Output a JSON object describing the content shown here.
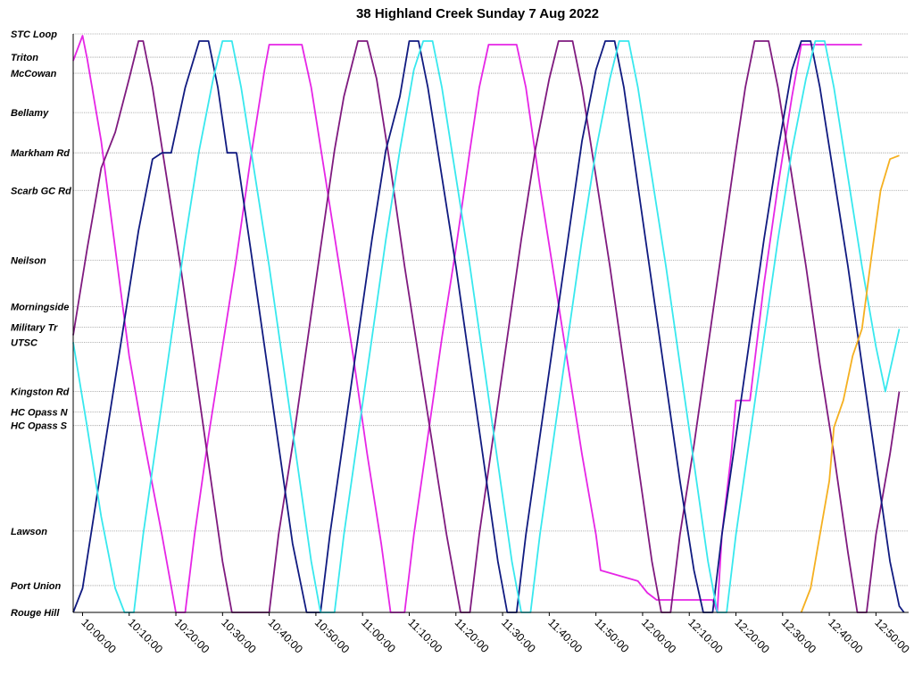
{
  "chart_data": {
    "type": "line",
    "title": "38 Highland Creek Sunday 7 Aug 2022",
    "xlabel": "",
    "ylabel": "",
    "x_range": [
      "09:58:00",
      "12:57:00"
    ],
    "grid": "horizontal-dotted",
    "legend": "none",
    "stops": [
      {
        "name": "STC Loop",
        "pos": 0
      },
      {
        "name": "Triton",
        "pos": 26
      },
      {
        "name": "McCowan",
        "pos": 44
      },
      {
        "name": "Bellamy",
        "pos": 88
      },
      {
        "name": "Markham Rd",
        "pos": 133
      },
      {
        "name": "Scarb GC Rd",
        "pos": 175
      },
      {
        "name": "Neilson",
        "pos": 253
      },
      {
        "name": "Morningside",
        "pos": 305
      },
      {
        "name": "Military Tr",
        "pos": 328
      },
      {
        "name": "UTSC",
        "pos": 345
      },
      {
        "name": "Kingston Rd",
        "pos": 400
      },
      {
        "name": "HC Opass N",
        "pos": 423
      },
      {
        "name": "HC Opass S",
        "pos": 438
      },
      {
        "name": "Lawson",
        "pos": 556
      },
      {
        "name": "Port Union",
        "pos": 617
      },
      {
        "name": "Rouge Hill",
        "pos": 647
      }
    ],
    "x_ticks": [
      "10:00:00",
      "10:10:00",
      "10:20:00",
      "10:30:00",
      "10:40:00",
      "10:50:00",
      "11:00:00",
      "11:10:00",
      "11:20:00",
      "11:30:00",
      "11:40:00",
      "11:50:00",
      "12:00:00",
      "12:10:00",
      "12:20:00",
      "12:30:00",
      "12:40:00",
      "12:50:00"
    ],
    "series": [
      {
        "color": "#e626e6",
        "points": [
          [
            "09:58:00",
            30
          ],
          [
            "10:00:00",
            2
          ],
          [
            "10:01:00",
            28
          ],
          [
            "10:04:00",
            120
          ],
          [
            "10:07:00",
            240
          ],
          [
            "10:10:00",
            360
          ],
          [
            "10:13:00",
            450
          ],
          [
            "10:17:00",
            560
          ],
          [
            "10:20:00",
            647
          ],
          [
            "10:22:00",
            647
          ],
          [
            "10:24:00",
            560
          ],
          [
            "10:27:00",
            450
          ],
          [
            "10:30:00",
            350
          ],
          [
            "10:33:00",
            250
          ],
          [
            "10:36:00",
            140
          ],
          [
            "10:39:00",
            40
          ],
          [
            "10:40:00",
            12
          ],
          [
            "10:47:00",
            12
          ],
          [
            "10:49:00",
            60
          ],
          [
            "10:52:00",
            160
          ],
          [
            "10:55:00",
            260
          ],
          [
            "10:58:00",
            360
          ],
          [
            "11:01:00",
            470
          ],
          [
            "11:04:00",
            570
          ],
          [
            "11:06:00",
            647
          ],
          [
            "11:09:00",
            647
          ],
          [
            "11:11:00",
            560
          ],
          [
            "11:14:00",
            450
          ],
          [
            "11:17:00",
            340
          ],
          [
            "11:20:00",
            240
          ],
          [
            "11:23:00",
            130
          ],
          [
            "11:25:00",
            60
          ],
          [
            "11:27:00",
            12
          ],
          [
            "11:33:00",
            12
          ],
          [
            "11:35:00",
            60
          ],
          [
            "11:38:00",
            170
          ],
          [
            "11:41:00",
            270
          ],
          [
            "11:44:00",
            370
          ],
          [
            "11:47:00",
            470
          ],
          [
            "11:50:00",
            560
          ],
          [
            "11:51:00",
            600
          ],
          [
            "11:59:00",
            612
          ],
          [
            "12:01:00",
            625
          ],
          [
            "12:03:00",
            633
          ],
          [
            "12:15:00",
            633
          ],
          [
            "12:16:00",
            647
          ],
          [
            "12:17:00",
            560
          ],
          [
            "12:19:00",
            470
          ],
          [
            "12:20:00",
            410
          ],
          [
            "12:23:00",
            410
          ],
          [
            "12:26:00",
            280
          ],
          [
            "12:29:00",
            170
          ],
          [
            "12:32:00",
            70
          ],
          [
            "12:34:00",
            12
          ],
          [
            "12:47:00",
            12
          ]
        ]
      },
      {
        "color": "#7f1a7f",
        "points": [
          [
            "09:58:00",
            337
          ],
          [
            "10:01:00",
            240
          ],
          [
            "10:04:00",
            150
          ],
          [
            "10:07:00",
            110
          ],
          [
            "10:10:00",
            50
          ],
          [
            "10:12:00",
            8
          ],
          [
            "10:13:00",
            8
          ],
          [
            "10:15:00",
            60
          ],
          [
            "10:18:00",
            160
          ],
          [
            "10:21:00",
            260
          ],
          [
            "10:24:00",
            370
          ],
          [
            "10:27:00",
            480
          ],
          [
            "10:30:00",
            590
          ],
          [
            "10:32:00",
            647
          ],
          [
            "10:40:00",
            647
          ],
          [
            "10:42:00",
            560
          ],
          [
            "10:45:00",
            460
          ],
          [
            "10:48:00",
            350
          ],
          [
            "10:51:00",
            240
          ],
          [
            "10:54:00",
            130
          ],
          [
            "10:56:00",
            70
          ],
          [
            "10:59:00",
            8
          ],
          [
            "11:01:00",
            8
          ],
          [
            "11:03:00",
            50
          ],
          [
            "11:06:00",
            150
          ],
          [
            "11:09:00",
            260
          ],
          [
            "11:12:00",
            360
          ],
          [
            "11:15:00",
            460
          ],
          [
            "11:18:00",
            560
          ],
          [
            "11:21:00",
            647
          ],
          [
            "11:23:00",
            647
          ],
          [
            "11:25:00",
            560
          ],
          [
            "11:28:00",
            450
          ],
          [
            "11:31:00",
            340
          ],
          [
            "11:34:00",
            230
          ],
          [
            "11:37:00",
            130
          ],
          [
            "11:40:00",
            50
          ],
          [
            "11:42:00",
            8
          ],
          [
            "11:45:00",
            8
          ],
          [
            "11:47:00",
            60
          ],
          [
            "11:50:00",
            160
          ],
          [
            "11:53:00",
            260
          ],
          [
            "11:56:00",
            370
          ],
          [
            "11:59:00",
            480
          ],
          [
            "12:02:00",
            590
          ],
          [
            "12:04:00",
            647
          ],
          [
            "12:06:00",
            647
          ],
          [
            "12:08:00",
            560
          ],
          [
            "12:11:00",
            460
          ],
          [
            "12:14:00",
            350
          ],
          [
            "12:17:00",
            240
          ],
          [
            "12:20:00",
            130
          ],
          [
            "12:22:00",
            60
          ],
          [
            "12:24:00",
            8
          ],
          [
            "12:27:00",
            8
          ],
          [
            "12:29:00",
            60
          ],
          [
            "12:32:00",
            160
          ],
          [
            "12:35:00",
            260
          ],
          [
            "12:38:00",
            370
          ],
          [
            "12:41:00",
            470
          ],
          [
            "12:44:00",
            580
          ],
          [
            "12:46:00",
            647
          ],
          [
            "12:48:00",
            647
          ],
          [
            "12:50:00",
            560
          ],
          [
            "12:53:00",
            470
          ],
          [
            "12:55:00",
            400
          ]
        ]
      },
      {
        "color": "#101a80",
        "points": [
          [
            "09:58:00",
            647
          ],
          [
            "10:00:00",
            620
          ],
          [
            "10:03:00",
            520
          ],
          [
            "10:06:00",
            420
          ],
          [
            "10:09:00",
            320
          ],
          [
            "10:12:00",
            220
          ],
          [
            "10:15:00",
            140
          ],
          [
            "10:17:00",
            133
          ],
          [
            "10:19:00",
            133
          ],
          [
            "10:22:00",
            60
          ],
          [
            "10:25:00",
            8
          ],
          [
            "10:27:00",
            8
          ],
          [
            "10:29:00",
            60
          ],
          [
            "10:31:00",
            133
          ],
          [
            "10:33:00",
            133
          ],
          [
            "10:36:00",
            240
          ],
          [
            "10:39:00",
            350
          ],
          [
            "10:42:00",
            460
          ],
          [
            "10:45:00",
            570
          ],
          [
            "10:48:00",
            647
          ],
          [
            "10:51:00",
            647
          ],
          [
            "10:53:00",
            560
          ],
          [
            "10:56:00",
            450
          ],
          [
            "10:59:00",
            340
          ],
          [
            "11:02:00",
            230
          ],
          [
            "11:05:00",
            130
          ],
          [
            "11:08:00",
            70
          ],
          [
            "11:10:00",
            8
          ],
          [
            "11:12:00",
            8
          ],
          [
            "11:14:00",
            60
          ],
          [
            "11:17:00",
            160
          ],
          [
            "11:20:00",
            260
          ],
          [
            "11:23:00",
            370
          ],
          [
            "11:26:00",
            480
          ],
          [
            "11:29:00",
            590
          ],
          [
            "11:31:00",
            647
          ],
          [
            "11:33:00",
            647
          ],
          [
            "11:35:00",
            560
          ],
          [
            "11:38:00",
            450
          ],
          [
            "11:41:00",
            340
          ],
          [
            "11:44:00",
            230
          ],
          [
            "11:47:00",
            120
          ],
          [
            "11:50:00",
            40
          ],
          [
            "11:52:00",
            8
          ],
          [
            "11:54:00",
            8
          ],
          [
            "11:56:00",
            60
          ],
          [
            "11:59:00",
            170
          ],
          [
            "12:02:00",
            280
          ],
          [
            "12:05:00",
            390
          ],
          [
            "12:08:00",
            500
          ],
          [
            "12:11:00",
            600
          ],
          [
            "12:13:00",
            647
          ],
          [
            "12:15:00",
            647
          ],
          [
            "12:17:00",
            560
          ],
          [
            "12:20:00",
            450
          ],
          [
            "12:23:00",
            340
          ],
          [
            "12:26:00",
            230
          ],
          [
            "12:29:00",
            130
          ],
          [
            "12:32:00",
            40
          ],
          [
            "12:34:00",
            8
          ],
          [
            "12:36:00",
            8
          ],
          [
            "12:38:00",
            60
          ],
          [
            "12:41:00",
            160
          ],
          [
            "12:44:00",
            260
          ],
          [
            "12:47:00",
            370
          ],
          [
            "12:50:00",
            480
          ],
          [
            "12:53:00",
            590
          ],
          [
            "12:55:00",
            640
          ],
          [
            "12:56:00",
            647
          ]
        ]
      },
      {
        "color": "#38e8ee",
        "points": [
          [
            "09:58:00",
            345
          ],
          [
            "10:01:00",
            440
          ],
          [
            "10:04:00",
            540
          ],
          [
            "10:07:00",
            620
          ],
          [
            "10:09:00",
            647
          ],
          [
            "10:11:00",
            647
          ],
          [
            "10:13:00",
            560
          ],
          [
            "10:16:00",
            450
          ],
          [
            "10:19:00",
            340
          ],
          [
            "10:22:00",
            230
          ],
          [
            "10:25:00",
            130
          ],
          [
            "10:28:00",
            50
          ],
          [
            "10:30:00",
            8
          ],
          [
            "10:32:00",
            8
          ],
          [
            "10:34:00",
            60
          ],
          [
            "10:37:00",
            160
          ],
          [
            "10:40:00",
            260
          ],
          [
            "10:43:00",
            370
          ],
          [
            "10:46:00",
            480
          ],
          [
            "10:49:00",
            590
          ],
          [
            "10:51:00",
            647
          ],
          [
            "10:54:00",
            647
          ],
          [
            "10:56:00",
            560
          ],
          [
            "10:59:00",
            450
          ],
          [
            "11:02:00",
            340
          ],
          [
            "11:05:00",
            230
          ],
          [
            "11:08:00",
            130
          ],
          [
            "11:11:00",
            40
          ],
          [
            "11:13:00",
            8
          ],
          [
            "11:15:00",
            8
          ],
          [
            "11:17:00",
            60
          ],
          [
            "11:20:00",
            160
          ],
          [
            "11:23:00",
            260
          ],
          [
            "11:26:00",
            370
          ],
          [
            "11:29:00",
            480
          ],
          [
            "11:32:00",
            590
          ],
          [
            "11:34:00",
            647
          ],
          [
            "11:36:00",
            647
          ],
          [
            "11:38:00",
            560
          ],
          [
            "11:41:00",
            450
          ],
          [
            "11:44:00",
            340
          ],
          [
            "11:47:00",
            230
          ],
          [
            "11:50:00",
            130
          ],
          [
            "11:53:00",
            50
          ],
          [
            "11:55:00",
            8
          ],
          [
            "11:57:00",
            8
          ],
          [
            "11:59:00",
            60
          ],
          [
            "12:02:00",
            160
          ],
          [
            "12:05:00",
            260
          ],
          [
            "12:08:00",
            370
          ],
          [
            "12:11:00",
            480
          ],
          [
            "12:14:00",
            590
          ],
          [
            "12:16:00",
            647
          ],
          [
            "12:18:00",
            647
          ],
          [
            "12:20:00",
            560
          ],
          [
            "12:23:00",
            450
          ],
          [
            "12:26:00",
            340
          ],
          [
            "12:29:00",
            230
          ],
          [
            "12:32:00",
            130
          ],
          [
            "12:35:00",
            50
          ],
          [
            "12:37:00",
            8
          ],
          [
            "12:39:00",
            8
          ],
          [
            "12:41:00",
            60
          ],
          [
            "12:44:00",
            160
          ],
          [
            "12:47:00",
            260
          ],
          [
            "12:50:00",
            350
          ],
          [
            "12:52:00",
            400
          ],
          [
            "12:55:00",
            330
          ]
        ]
      },
      {
        "color": "#f5b020",
        "points": [
          [
            "12:34:00",
            647
          ],
          [
            "12:36:00",
            620
          ],
          [
            "12:38:00",
            560
          ],
          [
            "12:40:00",
            500
          ],
          [
            "12:41:00",
            440
          ],
          [
            "12:43:00",
            410
          ],
          [
            "12:45:00",
            360
          ],
          [
            "12:47:00",
            330
          ],
          [
            "12:49:00",
            250
          ],
          [
            "12:51:00",
            175
          ],
          [
            "12:53:00",
            140
          ],
          [
            "12:55:00",
            136
          ]
        ]
      }
    ]
  }
}
